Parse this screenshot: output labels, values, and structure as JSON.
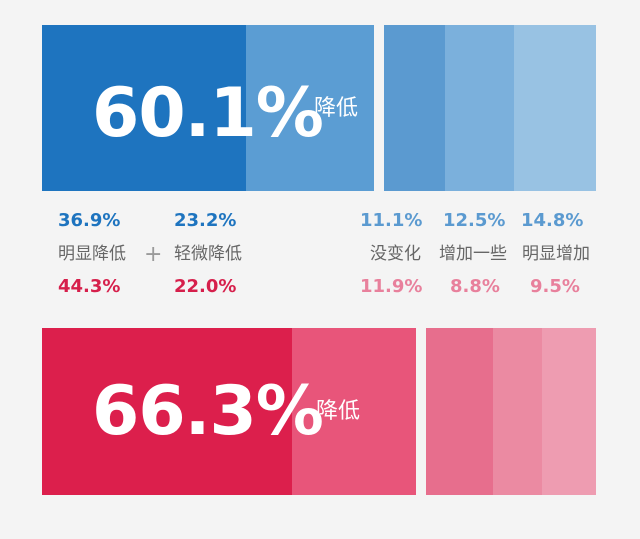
{
  "colors": {
    "blue_dark": "#1e74bf",
    "blue_mid": "#5b9dd3",
    "blue_nc": "#5b9ad0",
    "blue_some": "#7bb0dc",
    "blue_obv": "#98c2e3",
    "blue_text": "#1e74bf",
    "blue_light_text": "#5b9ad0",
    "red_dark": "#dc1f4c",
    "red_mid": "#e8557a",
    "red_nc": "#e76e8d",
    "red_some": "#eb8aa2",
    "red_obv": "#ee9cb1",
    "red_text": "#d61f4b",
    "red_light_text": "#e8809c"
  },
  "blue_block": {
    "big_value": "60.1%",
    "suffix": "降低"
  },
  "red_block": {
    "big_value": "66.3%",
    "suffix": "降低"
  },
  "labels": {
    "obvious_decrease": "明显降低",
    "slight_decrease": "轻微降低",
    "plus": "+",
    "no_change": "没变化",
    "some_increase": "增加一些",
    "obvious_increase": "明显增加"
  },
  "chart_data": {
    "type": "bar",
    "categories": [
      "明显降低",
      "轻微降低",
      "没变化",
      "增加一些",
      "明显增加"
    ],
    "series": [
      {
        "values": [
          36.9,
          23.2,
          11.1,
          12.5,
          14.8
        ],
        "value_labels": [
          "36.9%",
          "23.2%",
          "11.1%",
          "12.5%",
          "14.8%"
        ]
      },
      {
        "values": [
          44.3,
          22.0,
          11.9,
          8.8,
          9.5
        ],
        "value_labels": [
          "44.3%",
          "22.0%",
          "11.9%",
          "8.8%",
          "9.5%"
        ]
      }
    ],
    "totals": [
      {
        "label": "60.1%",
        "value": 60.1
      },
      {
        "label": "66.3%",
        "value": 66.3
      }
    ]
  }
}
